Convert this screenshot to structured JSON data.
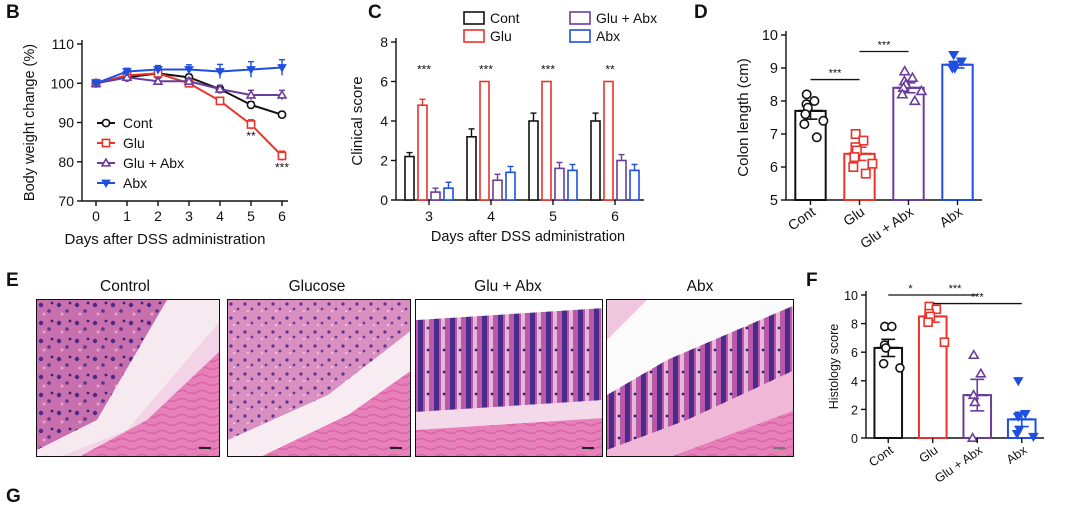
{
  "colors": {
    "cont": "#111111",
    "glu": "#e8342a",
    "glu_abx": "#6a3d9a",
    "abx": "#1f4fe0"
  },
  "panel_labels": {
    "b": "B",
    "c": "C",
    "d": "D",
    "e": "E",
    "f": "F",
    "g": "G"
  },
  "chart_data": [
    {
      "id": "B",
      "type": "line",
      "xlabel": "Days after DSS administration",
      "ylabel": "Body weight change (%)",
      "x": [
        0,
        1,
        2,
        3,
        4,
        5,
        6
      ],
      "xlim": [
        0,
        6
      ],
      "ylim": [
        70,
        110
      ],
      "yticks": [
        70,
        80,
        90,
        100,
        110
      ],
      "legend_position": "bottom-left",
      "series": [
        {
          "name": "Cont",
          "key": "cont",
          "marker": "circle-open",
          "values": [
            100,
            101.5,
            102.5,
            101.5,
            98.5,
            94.5,
            92
          ],
          "errors": [
            0.5,
            0.8,
            0.8,
            0.8,
            0.8,
            0.8,
            0.8
          ]
        },
        {
          "name": "Glu",
          "key": "glu",
          "marker": "square-open",
          "values": [
            100,
            102,
            102.5,
            100,
            95.5,
            89.5,
            81.5
          ],
          "errors": [
            0.5,
            0.8,
            0.8,
            0.9,
            0.9,
            1.2,
            1.2
          ]
        },
        {
          "name": "Glu + Abx",
          "key": "glu_abx",
          "marker": "triangle-open",
          "values": [
            100,
            101.5,
            100.5,
            100.5,
            98.5,
            97,
            97
          ],
          "errors": [
            0.5,
            0.8,
            0.8,
            0.8,
            1.0,
            1.2,
            1.2
          ]
        },
        {
          "name": "Abx",
          "key": "abx",
          "marker": "triangle-down-filled",
          "values": [
            100,
            103,
            103.5,
            103.5,
            103,
            103.5,
            104
          ],
          "errors": [
            0.5,
            0.8,
            1.0,
            1.2,
            1.8,
            2.0,
            2.0
          ]
        }
      ],
      "annotations": [
        {
          "x": 5,
          "y": 86.5,
          "text": "**"
        },
        {
          "x": 6,
          "y": 78.5,
          "text": "***"
        }
      ]
    },
    {
      "id": "C",
      "type": "bar",
      "xlabel": "Days after DSS administration",
      "ylabel": "Clinical score",
      "categories": [
        "3",
        "4",
        "5",
        "6"
      ],
      "ylim": [
        0,
        8
      ],
      "yticks": [
        0,
        2,
        4,
        6,
        8
      ],
      "legend_position": "top",
      "series": [
        {
          "name": "Cont",
          "key": "cont",
          "values": [
            2.2,
            3.2,
            4.0,
            4.0
          ],
          "errors": [
            0.2,
            0.4,
            0.4,
            0.4
          ]
        },
        {
          "name": "Glu",
          "key": "glu",
          "values": [
            4.8,
            6.0,
            6.0,
            6.0
          ],
          "errors": [
            0.3,
            0,
            0,
            0
          ]
        },
        {
          "name": "Glu + Abx",
          "key": "glu_abx",
          "values": [
            0.4,
            1.0,
            1.6,
            2.0
          ],
          "errors": [
            0.2,
            0.3,
            0.3,
            0.3
          ]
        },
        {
          "name": "Abx",
          "key": "abx",
          "values": [
            0.6,
            1.4,
            1.5,
            1.5
          ],
          "errors": [
            0.3,
            0.3,
            0.3,
            0.3
          ]
        }
      ],
      "annotations": [
        {
          "category": "3",
          "text": "***"
        },
        {
          "category": "4",
          "text": "***"
        },
        {
          "category": "5",
          "text": "***"
        },
        {
          "category": "6",
          "text": "**"
        }
      ]
    },
    {
      "id": "D",
      "type": "bar",
      "ylabel": "Colon length (cm)",
      "categories": [
        "Cont",
        "Glu",
        "Glu + Abx",
        "Abx"
      ],
      "ylim": [
        5,
        10
      ],
      "yticks": [
        5,
        6,
        7,
        8,
        9,
        10
      ],
      "groups": [
        {
          "key": "cont",
          "marker": "circle-open",
          "mean": 7.7,
          "sem": 0.25,
          "points": [
            8.2,
            8.0,
            7.9,
            7.8,
            7.6,
            7.4,
            7.3,
            6.9
          ]
        },
        {
          "key": "glu",
          "marker": "square-open",
          "mean": 6.4,
          "sem": 0.2,
          "points": [
            7.0,
            6.8,
            6.6,
            6.5,
            6.3,
            6.1,
            6.0,
            5.8
          ]
        },
        {
          "key": "glu_abx",
          "marker": "triangle-open",
          "mean": 8.4,
          "sem": 0.15,
          "points": [
            8.9,
            8.7,
            8.6,
            8.5,
            8.4,
            8.3,
            8.2,
            8.0
          ]
        },
        {
          "key": "abx",
          "marker": "triangle-down-filled",
          "mean": 9.1,
          "sem": 0.1,
          "points": [
            9.4,
            9.2,
            9.1,
            9.0,
            9.0
          ]
        }
      ],
      "comparisons": [
        {
          "from": "Cont",
          "to": "Glu",
          "y": 8.65,
          "text": "***"
        },
        {
          "from": "Glu",
          "to": "Glu + Abx",
          "y": 9.5,
          "text": "***"
        }
      ]
    },
    {
      "id": "F",
      "type": "bar",
      "ylabel": "Histology score",
      "categories": [
        "Cont",
        "Glu",
        "Glu + Abx",
        "Abx"
      ],
      "ylim": [
        0,
        10
      ],
      "yticks": [
        0,
        2,
        4,
        6,
        8,
        10
      ],
      "groups": [
        {
          "key": "cont",
          "marker": "circle-open",
          "mean": 6.3,
          "sem": 0.6,
          "points": [
            7.8,
            7.8,
            6.5,
            6.3,
            5.2,
            4.9
          ]
        },
        {
          "key": "glu",
          "marker": "square-open",
          "mean": 8.5,
          "sem": 0.4,
          "points": [
            9.2,
            9.0,
            8.7,
            8.5,
            8.1,
            6.7
          ]
        },
        {
          "key": "glu_abx",
          "marker": "triangle-open",
          "mean": 3.0,
          "sem": 1.1,
          "points": [
            5.8,
            4.5,
            3.0,
            2.5,
            0.0
          ]
        },
        {
          "key": "abx",
          "marker": "triangle-down-filled",
          "mean": 1.3,
          "sem": 0.5,
          "points": [
            4.0,
            1.7,
            1.5,
            0.6,
            0.3,
            0.1
          ]
        }
      ],
      "comparisons": [
        {
          "from": "Cont",
          "to": "Glu",
          "y": 10.0,
          "text": "*"
        },
        {
          "from": "Glu",
          "to": "Glu + Abx",
          "y": 10.0,
          "text": "***"
        },
        {
          "from": "Glu",
          "to": "Abx",
          "y": 9.4,
          "text": "***"
        }
      ]
    }
  ],
  "histology": {
    "panels": [
      {
        "title": "Control"
      },
      {
        "title": "Glucose"
      },
      {
        "title": "Glu + Abx"
      },
      {
        "title": "Abx"
      }
    ]
  }
}
